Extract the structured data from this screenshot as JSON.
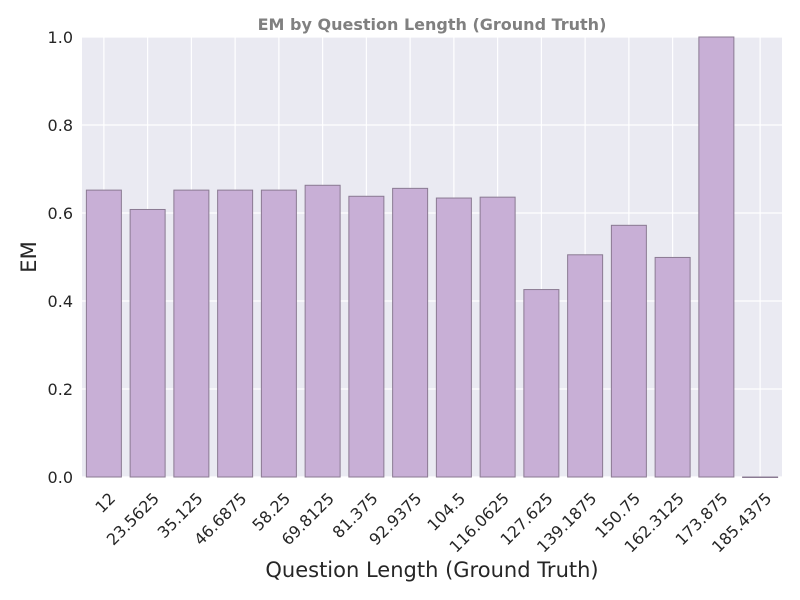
{
  "chart_data": {
    "type": "bar",
    "title": "EM by Question Length (Ground Truth)",
    "xlabel": "Question Length (Ground Truth)",
    "ylabel": "EM",
    "categories": [
      "12",
      "23.5625",
      "35.125",
      "46.6875",
      "58.25",
      "69.8125",
      "81.375",
      "92.9375",
      "104.5",
      "116.0625",
      "127.625",
      "139.1875",
      "150.75",
      "162.3125",
      "173.875",
      "185.4375"
    ],
    "values": [
      0.652,
      0.608,
      0.652,
      0.652,
      0.652,
      0.663,
      0.638,
      0.656,
      0.634,
      0.636,
      0.426,
      0.505,
      0.572,
      0.499,
      1.0,
      0.0
    ],
    "ylim": [
      0,
      1.0
    ],
    "yticks": [
      "0.0",
      "0.2",
      "0.4",
      "0.6",
      "0.8",
      "1.0"
    ],
    "grid": true,
    "colors": {
      "bar": "#c8afd6",
      "bar_edge": "#8a7a92",
      "background": "#eaeaf2",
      "grid": "#ffffff"
    }
  }
}
